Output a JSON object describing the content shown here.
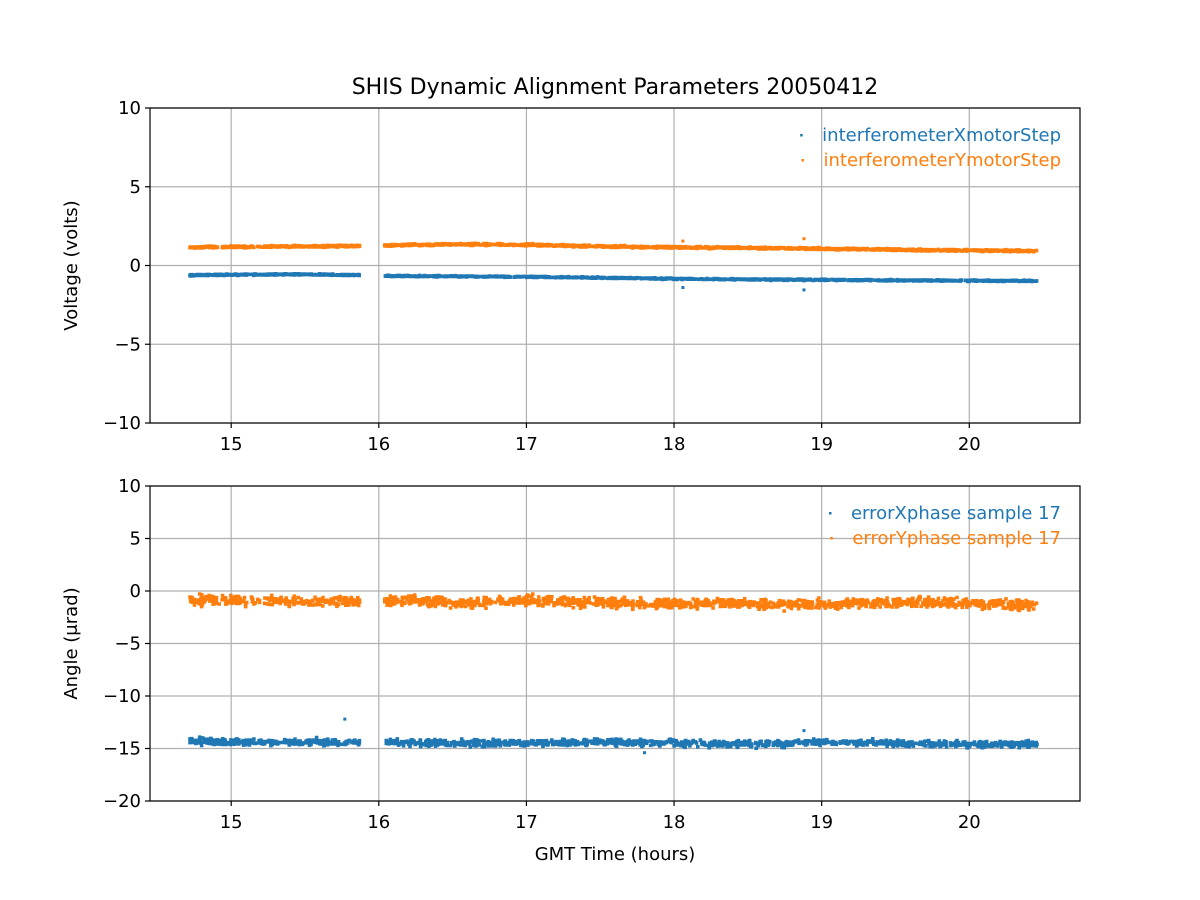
{
  "chart_data": [
    {
      "type": "scatter",
      "title": "SHIS Dynamic Alignment Parameters 20050412",
      "xlabel": "",
      "ylabel": "Voltage (volts)",
      "xlim": [
        14.45,
        20.75
      ],
      "ylim": [
        -10,
        10
      ],
      "xticks": [
        15,
        16,
        17,
        18,
        19,
        20
      ],
      "xtick_labels": [
        "15",
        "16",
        "17",
        "18",
        "19",
        "20"
      ],
      "yticks": [
        -10,
        -5,
        0,
        5,
        10
      ],
      "ytick_labels": [
        "−10",
        "−5",
        "0",
        "5",
        "10"
      ],
      "grid": true,
      "legend_position": "top-right",
      "data_gaps_hours": [
        [
          15.87,
          16.04
        ]
      ],
      "series": [
        {
          "name": "interferometerXmotorStep",
          "color": "#1f77b4",
          "spread": 0.12,
          "points": [
            [
              14.72,
              -0.55
            ],
            [
              15.0,
              -0.52
            ],
            [
              15.5,
              -0.5
            ],
            [
              15.86,
              -0.55
            ],
            [
              16.05,
              -0.6
            ],
            [
              16.4,
              -0.62
            ],
            [
              17.0,
              -0.65
            ],
            [
              17.5,
              -0.72
            ],
            [
              18.0,
              -0.78
            ],
            [
              18.5,
              -0.82
            ],
            [
              19.0,
              -0.85
            ],
            [
              19.5,
              -0.88
            ],
            [
              20.0,
              -0.9
            ],
            [
              20.46,
              -0.92
            ]
          ],
          "outliers": [
            [
              18.06,
              -1.4
            ],
            [
              18.88,
              -1.55
            ]
          ]
        },
        {
          "name": "interferometerYmotorStep",
          "color": "#ff7f0e",
          "spread": 0.18,
          "points": [
            [
              14.72,
              1.22
            ],
            [
              15.0,
              1.25
            ],
            [
              15.5,
              1.28
            ],
            [
              15.86,
              1.3
            ],
            [
              16.05,
              1.35
            ],
            [
              16.4,
              1.38
            ],
            [
              16.5,
              1.42
            ],
            [
              17.0,
              1.38
            ],
            [
              17.3,
              1.32
            ],
            [
              17.5,
              1.28
            ],
            [
              18.0,
              1.22
            ],
            [
              18.5,
              1.18
            ],
            [
              18.85,
              1.15
            ],
            [
              19.0,
              1.12
            ],
            [
              19.5,
              1.08
            ],
            [
              19.65,
              1.05
            ],
            [
              20.0,
              1.02
            ],
            [
              20.46,
              0.98
            ]
          ],
          "outliers": [
            [
              18.06,
              1.55
            ],
            [
              18.88,
              1.7
            ]
          ]
        }
      ]
    },
    {
      "type": "scatter",
      "title": "",
      "xlabel": "GMT Time (hours)",
      "ylabel": "Angle (μrad)",
      "xlim": [
        14.45,
        20.75
      ],
      "ylim": [
        -20,
        10
      ],
      "xticks": [
        15,
        16,
        17,
        18,
        19,
        20
      ],
      "xtick_labels": [
        "15",
        "16",
        "17",
        "18",
        "19",
        "20"
      ],
      "yticks": [
        -20,
        -15,
        -10,
        -5,
        0,
        5,
        10
      ],
      "ytick_labels": [
        "−20",
        "−15",
        "−10",
        "−5",
        "0",
        "5",
        "10"
      ],
      "grid": true,
      "legend_position": "top-right",
      "data_gaps_hours": [
        [
          15.87,
          16.04
        ]
      ],
      "series": [
        {
          "name": "errorXphase sample 17",
          "color": "#1f77b4",
          "spread": 0.9,
          "points": [
            [
              14.72,
              -14.2
            ],
            [
              15.0,
              -14.3
            ],
            [
              15.5,
              -14.3
            ],
            [
              15.86,
              -14.3
            ],
            [
              16.05,
              -14.3
            ],
            [
              16.5,
              -14.4
            ],
            [
              17.0,
              -14.4
            ],
            [
              17.5,
              -14.3
            ],
            [
              18.0,
              -14.4
            ],
            [
              18.5,
              -14.5
            ],
            [
              19.0,
              -14.3
            ],
            [
              19.5,
              -14.4
            ],
            [
              20.0,
              -14.5
            ],
            [
              20.46,
              -14.5
            ]
          ],
          "outliers": [
            [
              15.77,
              -12.2
            ],
            [
              18.88,
              -13.3
            ],
            [
              17.8,
              -15.4
            ]
          ]
        },
        {
          "name": "errorYphase sample 17",
          "color": "#ff7f0e",
          "spread": 1.4,
          "points": [
            [
              14.72,
              -0.8
            ],
            [
              15.0,
              -0.8
            ],
            [
              15.5,
              -0.9
            ],
            [
              15.86,
              -0.9
            ],
            [
              16.05,
              -0.8
            ],
            [
              16.4,
              -0.9
            ],
            [
              16.5,
              -1.1
            ],
            [
              17.0,
              -0.8
            ],
            [
              17.5,
              -1.0
            ],
            [
              18.0,
              -1.1
            ],
            [
              18.5,
              -1.1
            ],
            [
              19.0,
              -1.2
            ],
            [
              19.5,
              -1.0
            ],
            [
              19.65,
              -0.9
            ],
            [
              20.0,
              -1.1
            ],
            [
              20.46,
              -1.3
            ]
          ],
          "outliers": []
        }
      ]
    }
  ]
}
